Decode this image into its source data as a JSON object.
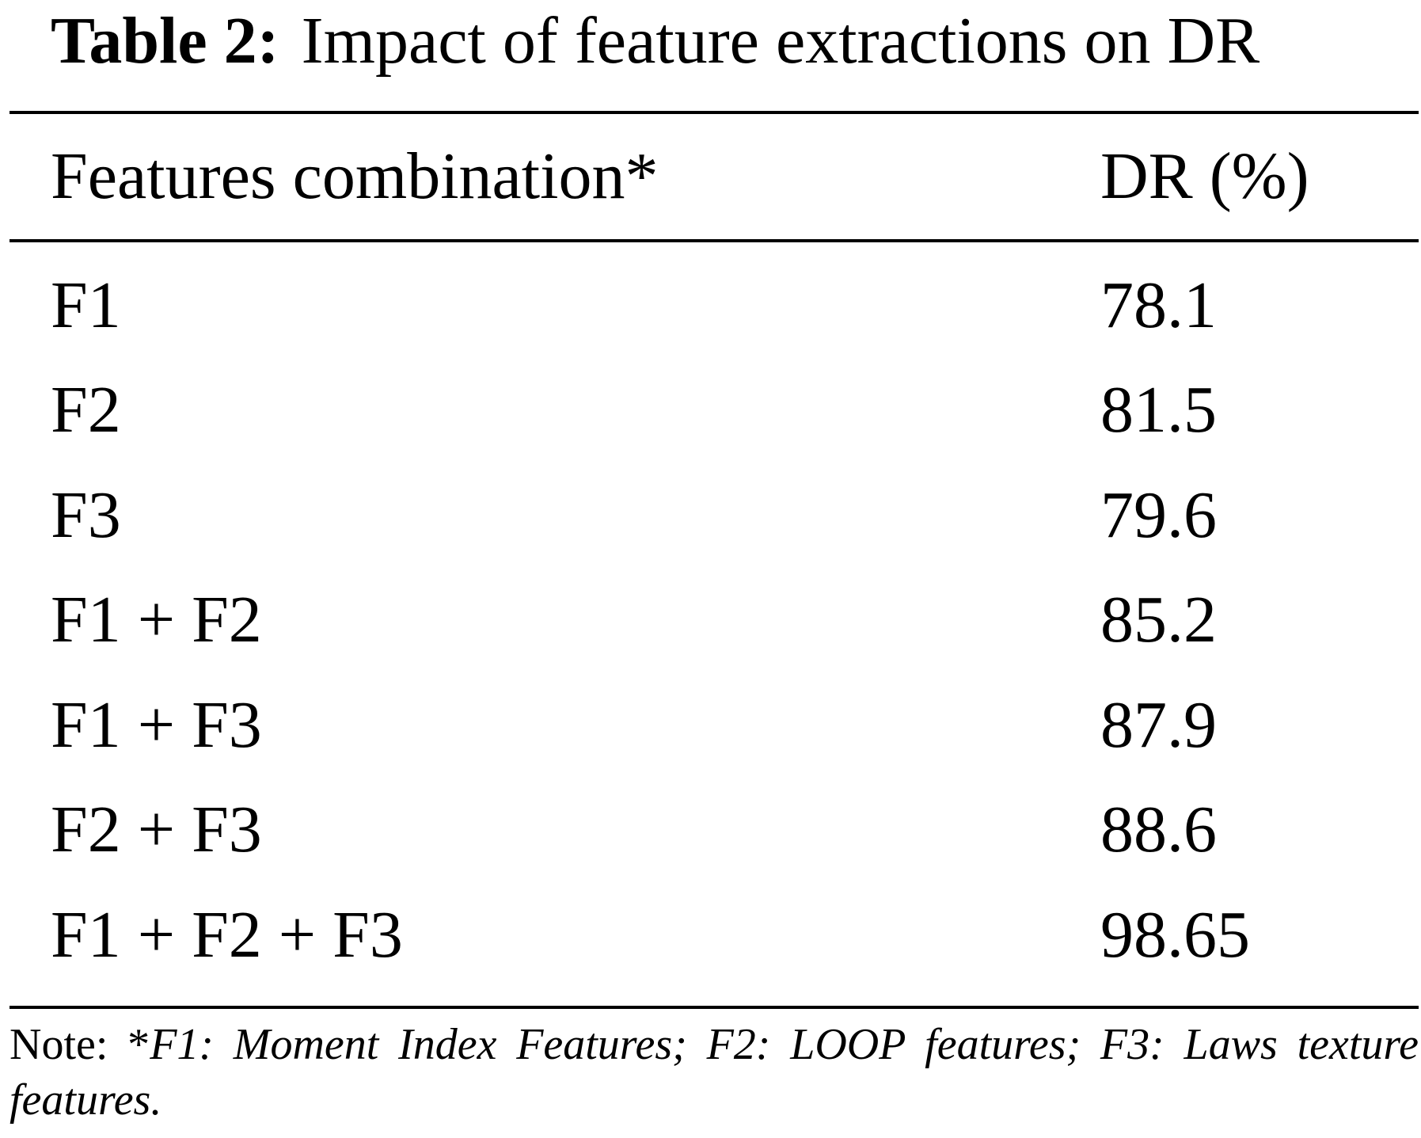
{
  "table": {
    "label": "Table 2:",
    "title": "Impact of feature extractions on DR",
    "headers": [
      "Features combination*",
      "DR (%)"
    ],
    "rows": [
      [
        "F1",
        "78.1"
      ],
      [
        "F2",
        "81.5"
      ],
      [
        "F3",
        "79.6"
      ],
      [
        "F1 + F2",
        "85.2"
      ],
      [
        "F1 + F3",
        "87.9"
      ],
      [
        "F2 + F3",
        "88.6"
      ],
      [
        "F1 + F2 + F3",
        "98.65"
      ]
    ],
    "note_prefix": "Note: *",
    "note_body": "F1: Moment Index Features; F2: LOOP features; F3: Laws texture features."
  }
}
